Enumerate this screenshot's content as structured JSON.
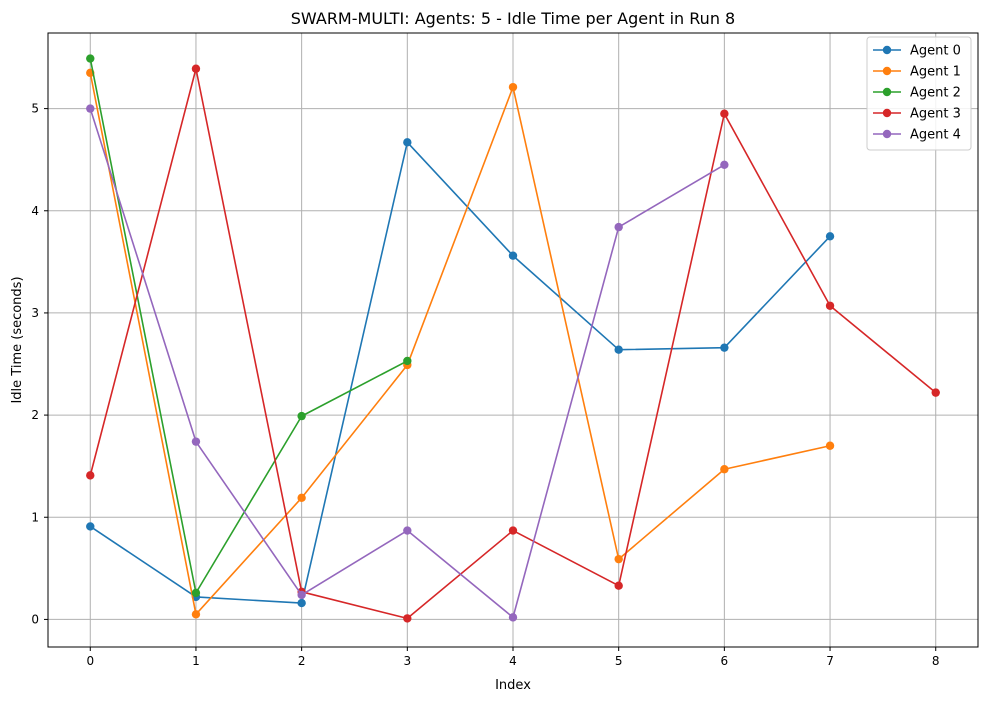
{
  "chart_data": {
    "type": "line",
    "title": "SWARM-MULTI: Agents: 5 - Idle Time per Agent in Run 8",
    "xlabel": "Index",
    "ylabel": "Idle Time (seconds)",
    "xlim": [
      -0.4,
      8.4
    ],
    "ylim": [
      -0.27,
      5.74
    ],
    "xticks": [
      0,
      1,
      2,
      3,
      4,
      5,
      6,
      7,
      8
    ],
    "yticks": [
      0,
      1,
      2,
      3,
      4,
      5
    ],
    "grid": true,
    "legend_position": "top-right",
    "series": [
      {
        "name": "Agent 0",
        "color": "#1f77b4",
        "x": [
          0,
          1,
          2,
          3,
          4,
          5,
          6,
          7
        ],
        "values": [
          0.91,
          0.22,
          0.16,
          4.67,
          3.56,
          2.64,
          2.66,
          3.75
        ]
      },
      {
        "name": "Agent 1",
        "color": "#ff7f0e",
        "x": [
          0,
          1,
          2,
          3,
          4,
          5,
          6,
          7
        ],
        "values": [
          5.35,
          0.05,
          1.19,
          2.49,
          5.21,
          0.59,
          1.47,
          1.7
        ]
      },
      {
        "name": "Agent 2",
        "color": "#2ca02c",
        "x": [
          0,
          1,
          2,
          3
        ],
        "values": [
          5.49,
          0.26,
          1.99,
          2.53
        ]
      },
      {
        "name": "Agent 3",
        "color": "#d62728",
        "x": [
          0,
          1,
          2,
          3,
          4,
          5,
          6,
          7,
          8
        ],
        "values": [
          1.41,
          5.39,
          0.27,
          0.01,
          0.87,
          0.33,
          4.95,
          3.07,
          2.22
        ]
      },
      {
        "name": "Agent 4",
        "color": "#9467bd",
        "x": [
          0,
          1,
          2,
          3,
          4,
          5,
          6
        ],
        "values": [
          5.0,
          1.74,
          0.24,
          0.87,
          0.02,
          3.84,
          4.45
        ]
      }
    ]
  }
}
